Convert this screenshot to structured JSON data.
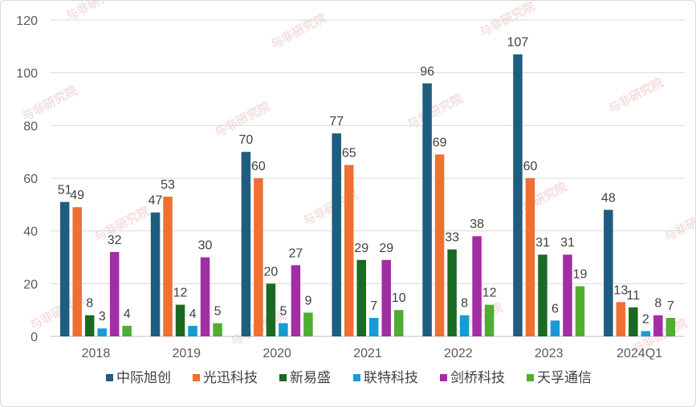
{
  "chart_data": {
    "type": "bar",
    "title": "",
    "xlabel": "",
    "ylabel": "",
    "ylim": [
      0,
      120
    ],
    "yticks": [
      0,
      20,
      40,
      60,
      80,
      100,
      120
    ],
    "grid": true,
    "legend_position": "bottom",
    "categories": [
      "2018",
      "2019",
      "2020",
      "2021",
      "2022",
      "2023",
      "2024Q1"
    ],
    "series": [
      {
        "name": "中际旭创",
        "color": "#1f5d7f",
        "values": [
          51,
          47,
          70,
          77,
          96,
          107,
          48
        ]
      },
      {
        "name": "光迅科技",
        "color": "#ee7032",
        "values": [
          49,
          53,
          60,
          65,
          69,
          60,
          13
        ]
      },
      {
        "name": "新易盛",
        "color": "#1a6a23",
        "values": [
          8,
          12,
          20,
          29,
          33,
          31,
          11
        ]
      },
      {
        "name": "联特科技",
        "color": "#179bd7",
        "values": [
          3,
          4,
          5,
          7,
          8,
          6,
          2
        ]
      },
      {
        "name": "剑桥科技",
        "color": "#a22ea3",
        "values": [
          32,
          30,
          27,
          29,
          38,
          31,
          8
        ]
      },
      {
        "name": "天孚通信",
        "color": "#4fad32",
        "values": [
          4,
          5,
          9,
          10,
          12,
          19,
          7
        ]
      }
    ]
  },
  "watermark": {
    "text": "与非研究院",
    "color": "#e8b4b4"
  }
}
